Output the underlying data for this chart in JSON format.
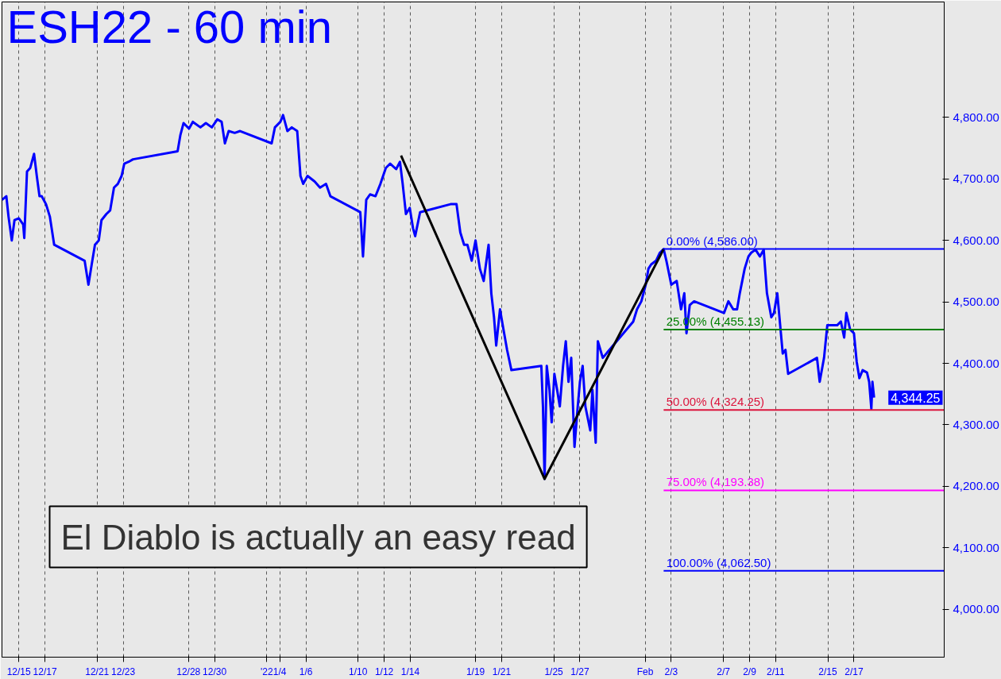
{
  "chart_data": {
    "type": "line",
    "title": "ESH22 - 60 min",
    "annotations": [
      "El Diablo is actually an easy read",
      "4,344.25"
    ],
    "xlim": [
      "2021-12-13T17:00",
      "2022-02-23T22:00"
    ],
    "ylim": [
      3922,
      4988
    ],
    "xticks": [
      {
        "value": "2021-12-15",
        "label": "12/15"
      },
      {
        "value": "2021-12-17",
        "label": "12/17"
      },
      {
        "value": "2021-12-21",
        "label": "12/21"
      },
      {
        "value": "2021-12-23",
        "label": "12/23"
      },
      {
        "value": "2021-12-28",
        "label": "12/28"
      },
      {
        "value": "2021-12-30",
        "label": "12/30"
      },
      {
        "value": "2022-01-03",
        "label": "'22"
      },
      {
        "value": "2022-01-04",
        "label": "1/4"
      },
      {
        "value": "2022-01-06",
        "label": "1/6"
      },
      {
        "value": "2022-01-10",
        "label": "1/10"
      },
      {
        "value": "2022-01-12",
        "label": "1/12"
      },
      {
        "value": "2022-01-14",
        "label": "1/14"
      },
      {
        "value": "2022-01-19",
        "label": "1/19"
      },
      {
        "value": "2022-01-21",
        "label": "1/21"
      },
      {
        "value": "2022-01-25",
        "label": "1/25"
      },
      {
        "value": "2022-01-27",
        "label": "1/27"
      },
      {
        "value": "2022-02-01",
        "label": "Feb"
      },
      {
        "value": "2022-02-03",
        "label": "2/3"
      },
      {
        "value": "2022-02-07",
        "label": "2/7"
      },
      {
        "value": "2022-02-09",
        "label": "2/9"
      },
      {
        "value": "2022-02-11",
        "label": "2/11"
      },
      {
        "value": "2022-02-15",
        "label": "2/15"
      },
      {
        "value": "2022-02-17",
        "label": "2/17"
      }
    ],
    "yticks": [
      {
        "value": 4000,
        "label": "4,000.00"
      },
      {
        "value": 4100,
        "label": "4,100.00"
      },
      {
        "value": 4200,
        "label": "4,200.00"
      },
      {
        "value": 4300,
        "label": "4,300.00"
      },
      {
        "value": 4400,
        "label": "4,400.00"
      },
      {
        "value": 4500,
        "label": "4,500.00"
      },
      {
        "value": 4600,
        "label": "4,600.00"
      },
      {
        "value": 4700,
        "label": "4,700.00"
      },
      {
        "value": 4800,
        "label": "4,800.00"
      }
    ],
    "grid": "x",
    "legend": false,
    "line_style": "solid",
    "marker": "none",
    "series": [
      {
        "color": "#0000ff",
        "x": [
          "2021-12-13T17:00",
          "2021-12-14T01:00",
          "2021-12-14T05:00",
          "2021-12-14T11:00",
          "2021-12-14T16:00",
          "2021-12-15T00:00",
          "2021-12-15T08:00",
          "2021-12-15T10:00",
          "2021-12-15T15:00",
          "2021-12-15T21:00",
          "2021-12-16T04:00",
          "2021-12-16T09:00",
          "2021-12-16T14:00",
          "2021-12-16T18:00",
          "2021-12-17T02:00",
          "2021-12-17T09:00",
          "2021-12-17T17:00",
          "2021-12-20T01:00",
          "2021-12-20T08:00",
          "2021-12-20T14:00",
          "2021-12-20T20:00",
          "2021-12-21T03:00",
          "2021-12-21T08:00",
          "2021-12-21T17:00",
          "2021-12-22T00:00",
          "2021-12-22T07:00",
          "2021-12-22T14:00",
          "2021-12-22T21:00",
          "2021-12-23T02:00",
          "2021-12-23T10:00",
          "2021-12-23T18:00",
          "2021-12-27T04:00",
          "2021-12-27T09:00",
          "2021-12-27T15:00",
          "2021-12-28T01:00",
          "2021-12-28T08:00",
          "2021-12-28T22:00",
          "2021-12-29T08:00",
          "2021-12-29T19:00",
          "2021-12-30T05:00",
          "2021-12-30T13:00",
          "2021-12-30T19:00",
          "2021-12-31T02:00",
          "2021-12-31T13:00",
          "2021-12-31T23:00",
          "2022-01-03T09:00",
          "2022-01-03T15:00",
          "2022-01-04T01:00",
          "2022-01-04T06:00",
          "2022-01-04T14:00",
          "2022-01-04T22:00",
          "2022-01-05T08:00",
          "2022-01-05T14:00",
          "2022-01-05T19:00",
          "2022-01-06T03:00",
          "2022-01-06T16:00",
          "2022-01-07T02:00",
          "2022-01-07T13:00",
          "2022-01-07T21:00",
          "2022-01-10T04:00",
          "2022-01-10T09:00",
          "2022-01-10T15:00",
          "2022-01-10T22:00",
          "2022-01-11T08:00",
          "2022-01-11T17:00",
          "2022-01-12T03:00",
          "2022-01-12T11:00",
          "2022-01-12T22:00",
          "2022-01-13T05:00",
          "2022-01-13T10:00",
          "2022-01-13T16:00",
          "2022-01-13T23:00",
          "2022-01-14T05:00",
          "2022-01-14T09:00",
          "2022-01-14T18:00",
          "2022-01-17T02:00",
          "2022-01-17T13:00",
          "2022-01-17T20:00",
          "2022-01-18T03:00",
          "2022-01-18T09:00",
          "2022-01-18T17:00",
          "2022-01-19T00:00",
          "2022-01-19T08:00",
          "2022-01-19T15:00",
          "2022-01-20T00:00",
          "2022-01-20T05:00",
          "2022-01-20T10:00",
          "2022-01-20T14:00",
          "2022-01-20T21:00",
          "2022-01-21T02:00",
          "2022-01-21T10:00",
          "2022-01-21T18:00",
          "2022-01-24T01:00",
          "2022-01-24T04:00",
          "2022-01-24T07:00",
          "2022-01-24T11:00",
          "2022-01-24T16:00",
          "2022-01-24T20:00",
          "2022-01-25T01:00",
          "2022-01-25T06:00",
          "2022-01-25T11:00",
          "2022-01-25T17:00",
          "2022-01-25T22:00",
          "2022-01-26T03:00",
          "2022-01-26T08:00",
          "2022-01-26T14:00",
          "2022-01-26T20:00",
          "2022-01-27T00:00",
          "2022-01-27T05:00",
          "2022-01-27T10:00",
          "2022-01-27T19:00",
          "2022-01-27T23:00",
          "2022-01-28T05:00",
          "2022-01-28T09:00",
          "2022-01-28T18:00",
          "2022-01-31T02:00",
          "2022-01-31T09:00",
          "2022-01-31T17:00",
          "2022-02-01T01:00",
          "2022-02-01T06:00",
          "2022-02-01T11:00",
          "2022-02-01T20:00",
          "2022-02-02T03:00",
          "2022-02-02T10:00",
          "2022-02-02T15:00",
          "2022-02-03T00:00",
          "2022-02-03T10:00",
          "2022-02-03T18:00",
          "2022-02-04T00:00",
          "2022-02-04T04:00",
          "2022-02-04T10:00",
          "2022-02-04T18:00",
          "2022-02-07T01:00",
          "2022-02-07T09:00",
          "2022-02-07T18:00",
          "2022-02-08T01:00",
          "2022-02-08T06:00",
          "2022-02-08T15:00",
          "2022-02-08T22:00",
          "2022-02-09T03:00",
          "2022-02-09T11:00",
          "2022-02-09T19:00",
          "2022-02-10T02:00",
          "2022-02-10T08:00",
          "2022-02-10T16:00",
          "2022-02-10T21:00",
          "2022-02-11T03:00",
          "2022-02-11T07:00",
          "2022-02-11T13:00",
          "2022-02-11T18:00",
          "2022-02-11T23:00",
          "2022-02-14T04:00",
          "2022-02-14T09:00",
          "2022-02-14T17:00",
          "2022-02-14T23:00",
          "2022-02-15T06:00",
          "2022-02-15T17:00",
          "2022-02-16T00:00",
          "2022-02-16T06:00",
          "2022-02-16T10:00",
          "2022-02-16T17:00",
          "2022-02-17T00:00",
          "2022-02-17T05:00",
          "2022-02-17T10:00",
          "2022-02-17T16:00",
          "2022-02-18T00:00",
          "2022-02-18T04:00",
          "2022-02-18T08:00",
          "2022-02-18T10:00",
          "2022-02-18T13:00"
        ],
        "values": [
          4666,
          4672,
          4639,
          4600,
          4633,
          4636,
          4626,
          4604,
          4712,
          4718,
          4741,
          4705,
          4672,
          4672,
          4659,
          4639,
          4593,
          4567,
          4528,
          4561,
          4593,
          4600,
          4633,
          4643,
          4649,
          4686,
          4692,
          4705,
          4725,
          4728,
          4732,
          4745,
          4771,
          4791,
          4782,
          4793,
          4784,
          4791,
          4784,
          4797,
          4793,
          4758,
          4778,
          4775,
          4778,
          4758,
          4784,
          4793,
          4804,
          4778,
          4784,
          4778,
          4705,
          4692,
          4705,
          4696,
          4686,
          4692,
          4672,
          4646,
          4574,
          4666,
          4675,
          4672,
          4692,
          4718,
          4725,
          4716,
          4728,
          4692,
          4643,
          4653,
          4620,
          4607,
          4646,
          4659,
          4659,
          4613,
          4593,
          4593,
          4567,
          4600,
          4554,
          4534,
          4593,
          4514,
          4475,
          4429,
          4488,
          4462,
          4422,
          4389,
          4396,
          4330,
          4212,
          4396,
          4357,
          4304,
          4383,
          4357,
          4330,
          4396,
          4436,
          4370,
          4409,
          4264,
          4330,
          4370,
          4396,
          4330,
          4291,
          4357,
          4271,
          4436,
          4409,
          4468,
          4488,
          4501,
          4528,
          4554,
          4561,
          4567,
          4580,
          4586,
          4567,
          4528,
          4534,
          4488,
          4514,
          4449,
          4495,
          4501,
          4482,
          4501,
          4488,
          4488,
          4514,
          4554,
          4574,
          4580,
          4585,
          4574,
          4585,
          4514,
          4475,
          4482,
          4514,
          4475,
          4416,
          4422,
          4383,
          4409,
          4370,
          4409,
          4462,
          4462,
          4462,
          4468,
          4442,
          4482,
          4455,
          4449,
          4403,
          4376,
          4389,
          4385,
          4370,
          4326,
          4370,
          4344.25
        ]
      },
      {
        "color": "#000000",
        "x": [
          "2022-01-13T07:00",
          "2022-01-24T07:00",
          "2022-02-02T10:00"
        ],
        "values": [
          4738,
          4212,
          4586
        ]
      },
      {
        "name": "0.00% (4,586.00)",
        "color": "#0000ff",
        "x": [
          "2022-02-02T10:00",
          "2022-02-23T22:00"
        ],
        "values": [
          4586,
          4586
        ]
      },
      {
        "name": "25.00% (4,455.13)",
        "color": "#008000",
        "x": [
          "2022-02-02T10:00",
          "2022-02-23T22:00"
        ],
        "values": [
          4455.13,
          4455.13
        ]
      },
      {
        "name": "50.00% (4,324.25)",
        "color": "#dc143c",
        "x": [
          "2022-02-02T10:00",
          "2022-02-23T22:00"
        ],
        "values": [
          4324.25,
          4324.25
        ]
      },
      {
        "name": "75.00% (4,193.38)",
        "color": "#ff00ff",
        "x": [
          "2022-02-02T10:00",
          "2022-02-23T22:00"
        ],
        "values": [
          4193.38,
          4193.38
        ]
      },
      {
        "name": "100.00% (4,062.50)",
        "color": "#0000ff",
        "x": [
          "2022-02-02T10:00",
          "2022-02-23T22:00"
        ],
        "values": [
          4062.5,
          4062.5
        ]
      }
    ]
  }
}
